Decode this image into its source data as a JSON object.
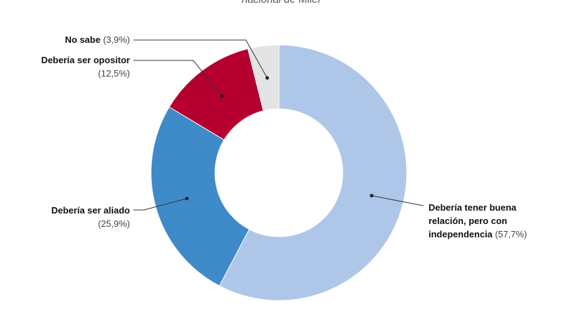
{
  "chart_data": {
    "type": "donut",
    "subtitle": "nacional de Milei",
    "categories": [
      "Debería tener buena relación, pero con independencia",
      "Debería ser aliado",
      "Debería ser opositor",
      "No sabe"
    ],
    "values": [
      57.7,
      25.9,
      12.5,
      3.9
    ],
    "value_labels": [
      "(57,7%)",
      "(25,9%)",
      "(12,5%)",
      "(3,9%)"
    ],
    "colors": [
      "#aec6e8",
      "#3f8ac8",
      "#b5002f",
      "#e4e4e4"
    ]
  }
}
